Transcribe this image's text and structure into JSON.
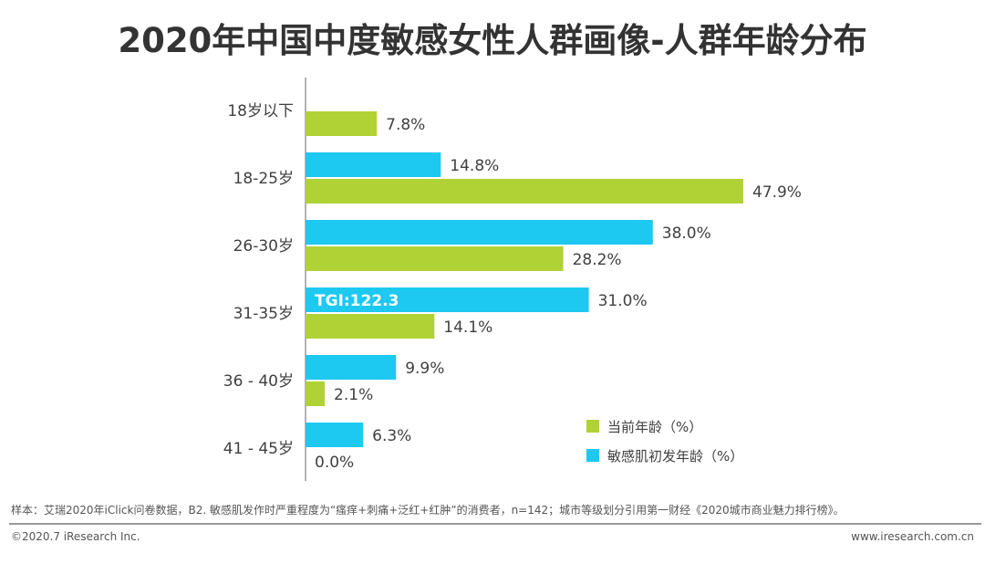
{
  "title": "2020年中国中度敏感女性人群画像-人群年龄分布",
  "chart_data": {
    "type": "bar",
    "orientation": "horizontal",
    "title": "2020年中国中度敏感女性人群画像-人群年龄分布",
    "categories": [
      "18岁以下",
      "18-25岁",
      "26-30岁",
      "31-35岁",
      "36 - 40岁",
      "41 - 45岁"
    ],
    "series": [
      {
        "name": "敏感肌初发年龄（%）",
        "color": "#1DC8F1",
        "values": [
          null,
          14.8,
          38.0,
          31.0,
          9.9,
          6.3
        ],
        "labels": [
          "",
          "14.8%",
          "38.0%",
          "31.0%",
          "9.9%",
          "6.3%"
        ]
      },
      {
        "name": "当前年龄（%）",
        "color": "#B0D235",
        "values": [
          7.8,
          47.9,
          28.2,
          14.1,
          2.1,
          0.0
        ],
        "labels": [
          "7.8%",
          "47.9%",
          "28.2%",
          "14.1%",
          "2.1%",
          "0.0%"
        ]
      }
    ],
    "annotation": "TGI:122.3",
    "legend": [
      "当前年龄（%）",
      "敏感肌初发年龄（%）"
    ],
    "legend_position": "bottom-right",
    "grid": false
  },
  "footer": {
    "note": "样本：艾瑞2020年iClick问卷数据，B2. 敏感肌发作时严重程度为“瘙痒+刺痛+泛红+红肿”的消费者，n=142；城市等级划分引用第一财经《2020城市商业魅力排行榜》。",
    "copyright": "©2020.7 iResearch Inc.",
    "website": "www.iresearch.com.cn"
  }
}
